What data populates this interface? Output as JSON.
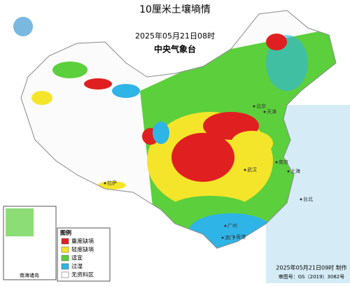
{
  "header": {
    "title": "10厘米土壤墒情",
    "time": "2025年05月21日08时",
    "issuer": "中央气象台"
  },
  "legend": {
    "title": "图例",
    "items": [
      {
        "label": "重度缺墒",
        "color": "#e02020"
      },
      {
        "label": "轻度缺墒",
        "color": "#f5e52a"
      },
      {
        "label": "适宜",
        "color": "#5ccf3c"
      },
      {
        "label": "过湿",
        "color": "#2fb4e8"
      },
      {
        "label": "无资料区",
        "color": "#ffffff"
      }
    ]
  },
  "inset": {
    "label": "南海诸岛"
  },
  "footer": {
    "made": "2025年05月21日09时 制作",
    "approval": "审图号：GS（2019）3082号"
  },
  "places": [
    {
      "name": "北京"
    },
    {
      "name": "天津"
    },
    {
      "name": "上海"
    },
    {
      "name": "拉萨"
    },
    {
      "name": "武汉"
    },
    {
      "name": "广州"
    },
    {
      "name": "香港"
    },
    {
      "name": "澳门"
    },
    {
      "name": "台北"
    },
    {
      "name": "南京"
    }
  ]
}
